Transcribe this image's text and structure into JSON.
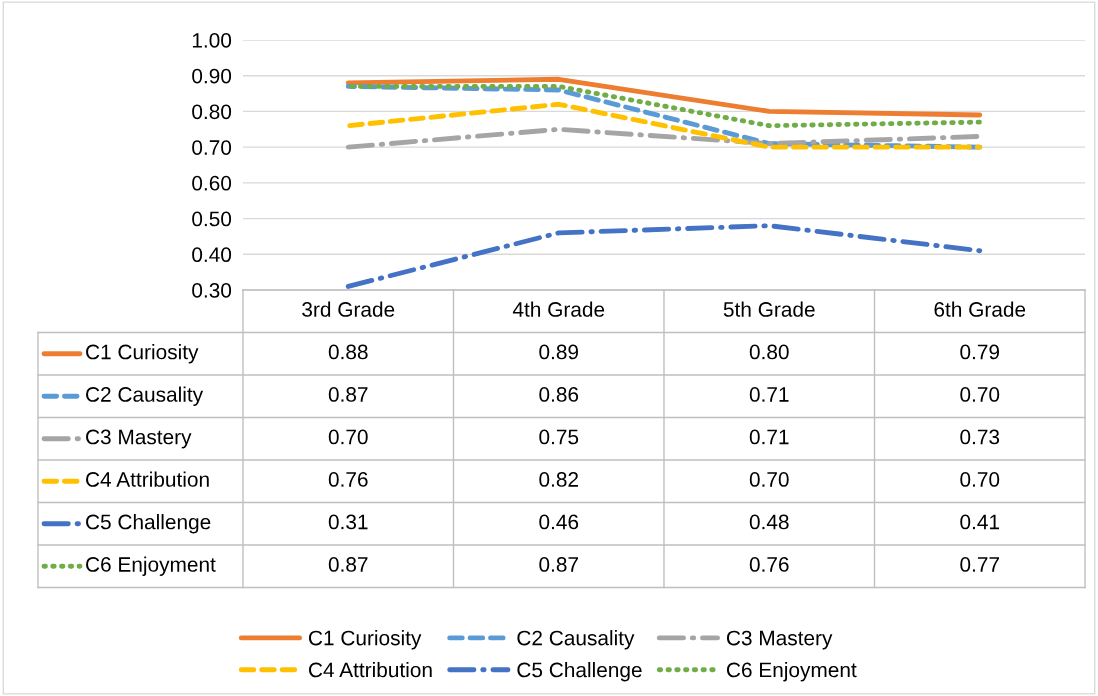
{
  "chart_data": {
    "type": "line",
    "categories": [
      "3rd Grade",
      "4th Grade",
      "5th Grade",
      "6th Grade"
    ],
    "ylim": [
      0.3,
      1.0
    ],
    "yticks": [
      {
        "value": 0.3,
        "label": "0.30"
      },
      {
        "value": 0.4,
        "label": "0.40"
      },
      {
        "value": 0.5,
        "label": "0.50"
      },
      {
        "value": 0.6,
        "label": "0.60"
      },
      {
        "value": 0.7,
        "label": "0.70"
      },
      {
        "value": 0.8,
        "label": "0.80"
      },
      {
        "value": 0.9,
        "label": "0.90"
      },
      {
        "value": 1.0,
        "label": "1.00"
      }
    ],
    "grid": "y",
    "legend": "bottom",
    "marker": "none",
    "series": [
      {
        "name": "C1 Curiosity",
        "color": "#ed7d31",
        "line_style": "solid",
        "values": [
          0.88,
          0.89,
          0.8,
          0.79
        ],
        "value_labels": [
          "0.88",
          "0.89",
          "0.80",
          "0.79"
        ]
      },
      {
        "name": "C2 Causality",
        "color": "#5b9bd5",
        "line_style": "dashed",
        "values": [
          0.87,
          0.86,
          0.71,
          0.7
        ],
        "value_labels": [
          "0.87",
          "0.86",
          "0.71",
          "0.70"
        ]
      },
      {
        "name": "C3 Mastery",
        "color": "#a5a5a5",
        "line_style": "dashdot",
        "values": [
          0.7,
          0.75,
          0.71,
          0.73
        ],
        "value_labels": [
          "0.70",
          "0.75",
          "0.71",
          "0.73"
        ]
      },
      {
        "name": "C4 Attribution",
        "color": "#ffc000",
        "line_style": "dashed",
        "values": [
          0.76,
          0.82,
          0.7,
          0.7
        ],
        "value_labels": [
          "0.76",
          "0.82",
          "0.70",
          "0.70"
        ]
      },
      {
        "name": "C5 Challenge",
        "color": "#4472c4",
        "line_style": "dashdot",
        "values": [
          0.31,
          0.46,
          0.48,
          0.41
        ],
        "value_labels": [
          "0.31",
          "0.46",
          "0.48",
          "0.41"
        ]
      },
      {
        "name": "C6 Enjoyment",
        "color": "#70ad47",
        "line_style": "dotted",
        "values": [
          0.87,
          0.87,
          0.76,
          0.77
        ],
        "value_labels": [
          "0.87",
          "0.87",
          "0.76",
          "0.77"
        ]
      }
    ]
  }
}
